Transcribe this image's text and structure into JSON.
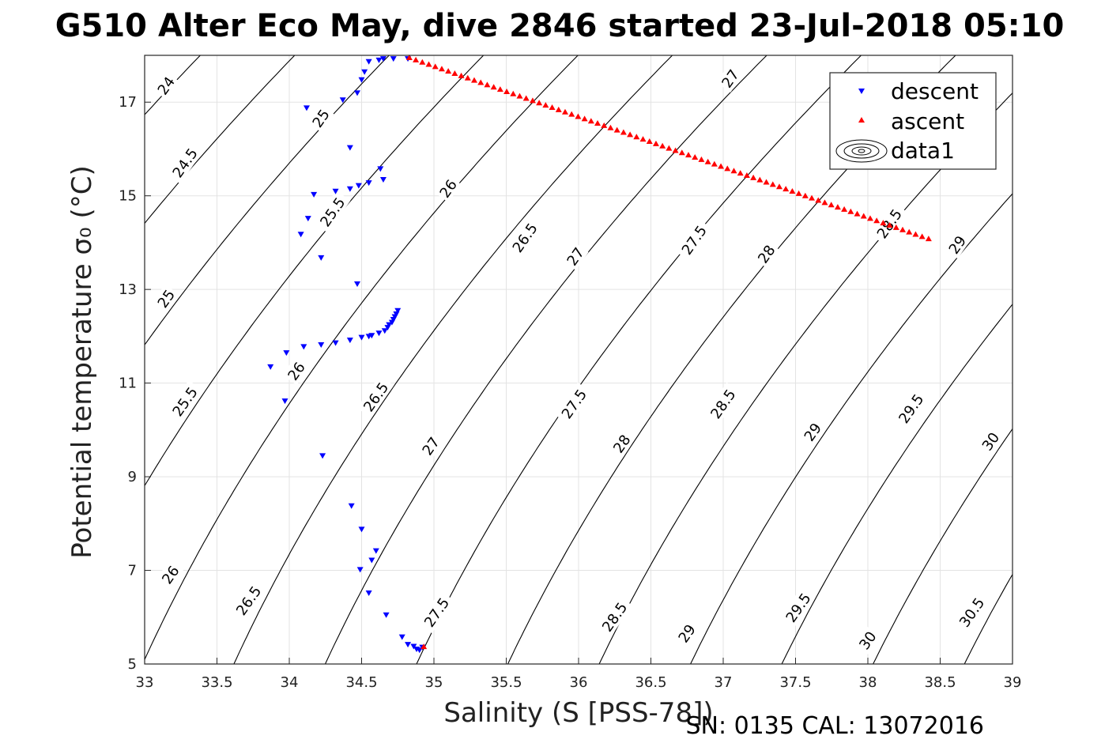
{
  "chart_data": {
    "type": "scatter",
    "title": "G510 Alter Eco May, dive 2846 started 23-Jul-2018 05:10",
    "xlabel": "Salinity (S [PSS-78])",
    "ylabel": "Potential temperature σ₀ (°C)",
    "footer": "SN: 0135  CAL: 13072016",
    "xlim": [
      33,
      39
    ],
    "ylim": [
      5,
      18
    ],
    "x_ticks": [
      "33",
      "33.5",
      "34",
      "34.5",
      "35",
      "35.5",
      "36",
      "36.5",
      "37",
      "37.5",
      "38",
      "38.5",
      "39"
    ],
    "y_ticks": [
      "5",
      "7",
      "9",
      "11",
      "13",
      "15",
      "17"
    ],
    "grid": true,
    "legend_position": "top-right",
    "legend": [
      "descent",
      "ascent",
      "data1"
    ],
    "contour_levels": [
      24,
      24.5,
      25,
      25.5,
      26,
      26.5,
      27,
      27.5,
      28,
      28.5,
      29,
      29.5,
      30,
      30.5
    ],
    "contour_labels": [
      {
        "t": "24",
        "x": 33.15,
        "y": 17.35
      },
      {
        "t": "24.5",
        "x": 33.28,
        "y": 15.7
      },
      {
        "t": "25",
        "x": 34.22,
        "y": 16.65
      },
      {
        "t": "25",
        "x": 33.15,
        "y": 12.8
      },
      {
        "t": "25.5",
        "x": 34.3,
        "y": 14.65
      },
      {
        "t": "25.5",
        "x": 33.28,
        "y": 10.6
      },
      {
        "t": "26",
        "x": 35.1,
        "y": 15.15
      },
      {
        "t": "26",
        "x": 34.05,
        "y": 11.25
      },
      {
        "t": "26",
        "x": 33.18,
        "y": 6.9
      },
      {
        "t": "26.5",
        "x": 35.63,
        "y": 14.1
      },
      {
        "t": "26.5",
        "x": 34.6,
        "y": 10.7
      },
      {
        "t": "26.5",
        "x": 33.72,
        "y": 6.35
      },
      {
        "t": "27",
        "x": 35.98,
        "y": 13.7
      },
      {
        "t": "27",
        "x": 34.98,
        "y": 9.65
      },
      {
        "t": "27",
        "x": 37.05,
        "y": 17.5
      },
      {
        "t": "27.5",
        "x": 36.8,
        "y": 14.05
      },
      {
        "t": "27.5",
        "x": 35.97,
        "y": 10.55
      },
      {
        "t": "27.5",
        "x": 35.02,
        "y": 6.1
      },
      {
        "t": "28",
        "x": 37.3,
        "y": 13.75
      },
      {
        "t": "28",
        "x": 36.3,
        "y": 9.7
      },
      {
        "t": "28.5",
        "x": 38.15,
        "y": 14.4
      },
      {
        "t": "28.5",
        "x": 37.0,
        "y": 10.55
      },
      {
        "t": "28.5",
        "x": 36.25,
        "y": 6.0
      },
      {
        "t": "29",
        "x": 38.62,
        "y": 13.95
      },
      {
        "t": "29",
        "x": 37.62,
        "y": 9.95
      },
      {
        "t": "29",
        "x": 36.75,
        "y": 5.65
      },
      {
        "t": "29.5",
        "x": 38.3,
        "y": 10.45
      },
      {
        "t": "29.5",
        "x": 37.52,
        "y": 6.2
      },
      {
        "t": "30",
        "x": 38.85,
        "y": 9.75
      },
      {
        "t": "30",
        "x": 38.0,
        "y": 5.5
      },
      {
        "t": "30.5",
        "x": 38.72,
        "y": 6.1
      }
    ],
    "series": [
      {
        "name": "descent",
        "marker": "triangle-down",
        "color": "#0000ff",
        "points": [
          [
            34.82,
            17.93
          ],
          [
            34.72,
            17.93
          ],
          [
            34.65,
            17.93
          ],
          [
            34.62,
            17.9
          ],
          [
            34.55,
            17.87
          ],
          [
            34.52,
            17.65
          ],
          [
            34.5,
            17.48
          ],
          [
            34.47,
            17.2
          ],
          [
            34.37,
            17.05
          ],
          [
            34.12,
            16.88
          ],
          [
            34.42,
            16.03
          ],
          [
            34.63,
            15.58
          ],
          [
            34.65,
            15.35
          ],
          [
            34.55,
            15.28
          ],
          [
            34.48,
            15.22
          ],
          [
            34.42,
            15.15
          ],
          [
            34.32,
            15.1
          ],
          [
            34.17,
            15.03
          ],
          [
            34.13,
            14.52
          ],
          [
            34.08,
            14.18
          ],
          [
            34.22,
            13.68
          ],
          [
            34.47,
            13.12
          ],
          [
            34.75,
            12.55
          ],
          [
            34.74,
            12.48
          ],
          [
            34.73,
            12.42
          ],
          [
            34.72,
            12.36
          ],
          [
            34.71,
            12.3
          ],
          [
            34.69,
            12.25
          ],
          [
            34.68,
            12.19
          ],
          [
            34.66,
            12.12
          ],
          [
            34.62,
            12.07
          ],
          [
            34.57,
            12.02
          ],
          [
            34.55,
            12.0
          ],
          [
            34.5,
            11.98
          ],
          [
            34.42,
            11.92
          ],
          [
            34.32,
            11.86
          ],
          [
            34.22,
            11.82
          ],
          [
            34.1,
            11.78
          ],
          [
            33.98,
            11.65
          ],
          [
            33.87,
            11.35
          ],
          [
            33.97,
            10.62
          ],
          [
            34.23,
            9.45
          ],
          [
            34.43,
            8.38
          ],
          [
            34.5,
            7.88
          ],
          [
            34.6,
            7.42
          ],
          [
            34.57,
            7.22
          ],
          [
            34.49,
            7.02
          ],
          [
            34.55,
            6.52
          ],
          [
            34.67,
            6.05
          ],
          [
            34.78,
            5.58
          ],
          [
            34.82,
            5.42
          ],
          [
            34.86,
            5.38
          ],
          [
            34.88,
            5.32
          ],
          [
            34.9,
            5.3
          ],
          [
            34.92,
            5.36
          ]
        ]
      },
      {
        "name": "ascent",
        "marker": "triangle-up",
        "color": "#ff0000",
        "points": [
          [
            34.83,
            17.95
          ],
          [
            38.42,
            14.08
          ],
          [
            34.93,
            5.37
          ]
        ],
        "n_along_line": 80
      },
      {
        "name": "data1",
        "marker": "contour",
        "color": "#000000"
      }
    ]
  }
}
